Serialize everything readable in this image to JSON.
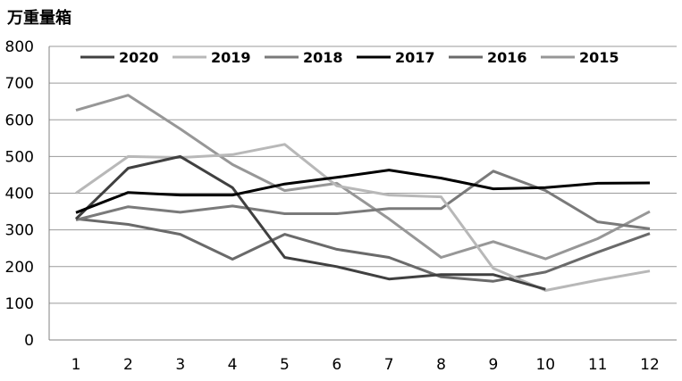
{
  "chart_data": {
    "type": "line",
    "unit_label": "万重量箱",
    "x": [
      1,
      2,
      3,
      4,
      5,
      6,
      7,
      8,
      9,
      10,
      11,
      12
    ],
    "xlim": [
      1,
      12
    ],
    "ylim": [
      0,
      800
    ],
    "yticks": [
      0,
      100,
      200,
      300,
      400,
      500,
      600,
      700,
      800
    ],
    "grid": true,
    "legend_position": "top",
    "series": [
      {
        "name": "2020",
        "color": "#404040",
        "values": [
          330,
          468,
          500,
          415,
          225,
          200,
          166,
          178,
          178,
          138,
          null,
          null
        ]
      },
      {
        "name": "2019",
        "color": "#b8b8b8",
        "values": [
          400,
          500,
          497,
          505,
          533,
          420,
          395,
          390,
          195,
          135,
          163,
          188
        ]
      },
      {
        "name": "2018",
        "color": "#7a7a7a",
        "values": [
          327,
          363,
          348,
          365,
          344,
          344,
          358,
          358,
          460,
          407,
          322,
          303
        ]
      },
      {
        "name": "2017",
        "color": "#000000",
        "values": [
          347,
          402,
          395,
          395,
          425,
          443,
          463,
          441,
          412,
          415,
          427,
          428
        ]
      },
      {
        "name": "2016",
        "color": "#6a6a6a",
        "values": [
          330,
          315,
          288,
          220,
          288,
          247,
          225,
          172,
          160,
          185,
          239,
          290
        ]
      },
      {
        "name": "2015",
        "color": "#979797",
        "values": [
          626,
          667,
          575,
          478,
          407,
          427,
          330,
          225,
          268,
          221,
          276,
          350
        ]
      }
    ]
  }
}
